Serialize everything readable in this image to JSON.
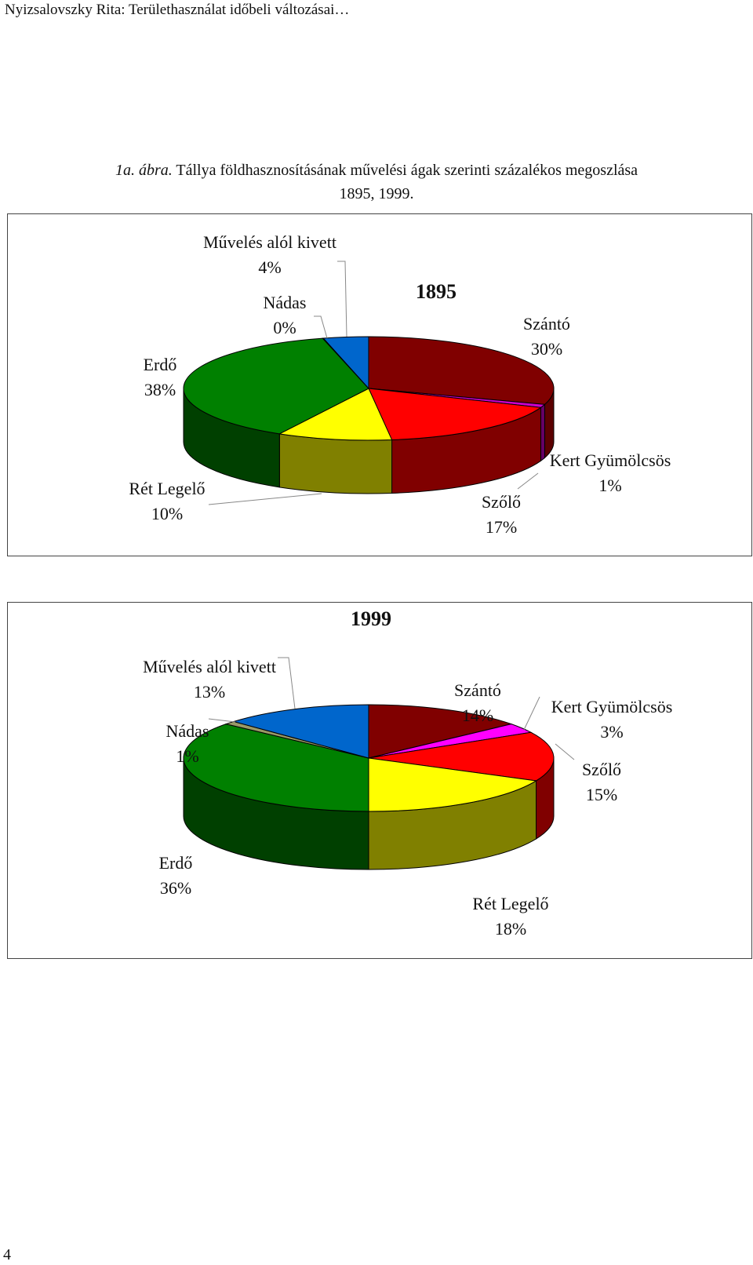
{
  "header": {
    "text": "Nyizsalovszky Rita: Területhasználat időbeli változásai…"
  },
  "caption": {
    "label": "1a. ábra.",
    "text": " Tállya földhasznosításának művelési ágak szerinti százalékos megoszlása",
    "line2": "1895, 1999."
  },
  "page_number": "4",
  "chart_data": [
    {
      "type": "pie",
      "title": "1895",
      "slices": [
        {
          "name": "Szántó",
          "value": 30,
          "label": "30%",
          "color": "#800000",
          "side_color": "#5c0000"
        },
        {
          "name": "Kert Gyümölcsös",
          "value": 1,
          "label": "1%",
          "color": "#cc00cc",
          "side_color": "#660066"
        },
        {
          "name": "Szőlő",
          "value": 17,
          "label": "17%",
          "color": "#ff0000",
          "side_color": "#800000"
        },
        {
          "name": "Rét Legelő",
          "value": 10,
          "label": "10%",
          "color": "#ffff00",
          "side_color": "#808000"
        },
        {
          "name": "Erdő",
          "value": 38,
          "label": "38%",
          "color": "#008000",
          "side_color": "#004000"
        },
        {
          "name": "Nádas",
          "value": 0,
          "label": "0%",
          "color": "#404000",
          "side_color": "#202000"
        },
        {
          "name": "Művelés alól kivett",
          "value": 4,
          "label": "4%",
          "color": "#0066cc",
          "side_color": "#003366"
        }
      ]
    },
    {
      "type": "pie",
      "title": "1999",
      "slices": [
        {
          "name": "Szántó",
          "value": 14,
          "label": "14%",
          "color": "#800000",
          "side_color": "#5c0000"
        },
        {
          "name": "Kert Gyümölcsös",
          "value": 3,
          "label": "3%",
          "color": "#ff00ff",
          "side_color": "#800080"
        },
        {
          "name": "Szőlő",
          "value": 15,
          "label": "15%",
          "color": "#ff0000",
          "side_color": "#800000"
        },
        {
          "name": "Rét Legelő",
          "value": 18,
          "label": "18%",
          "color": "#ffff00",
          "side_color": "#808000"
        },
        {
          "name": "Erdő",
          "value": 36,
          "label": "36%",
          "color": "#008000",
          "side_color": "#004000"
        },
        {
          "name": "Nádas",
          "value": 1,
          "label": "1%",
          "color": "#999966",
          "side_color": "#4d4d33"
        },
        {
          "name": "Művelés alól kivett",
          "value": 13,
          "label": "13%",
          "color": "#0066cc",
          "side_color": "#003366"
        }
      ]
    }
  ]
}
